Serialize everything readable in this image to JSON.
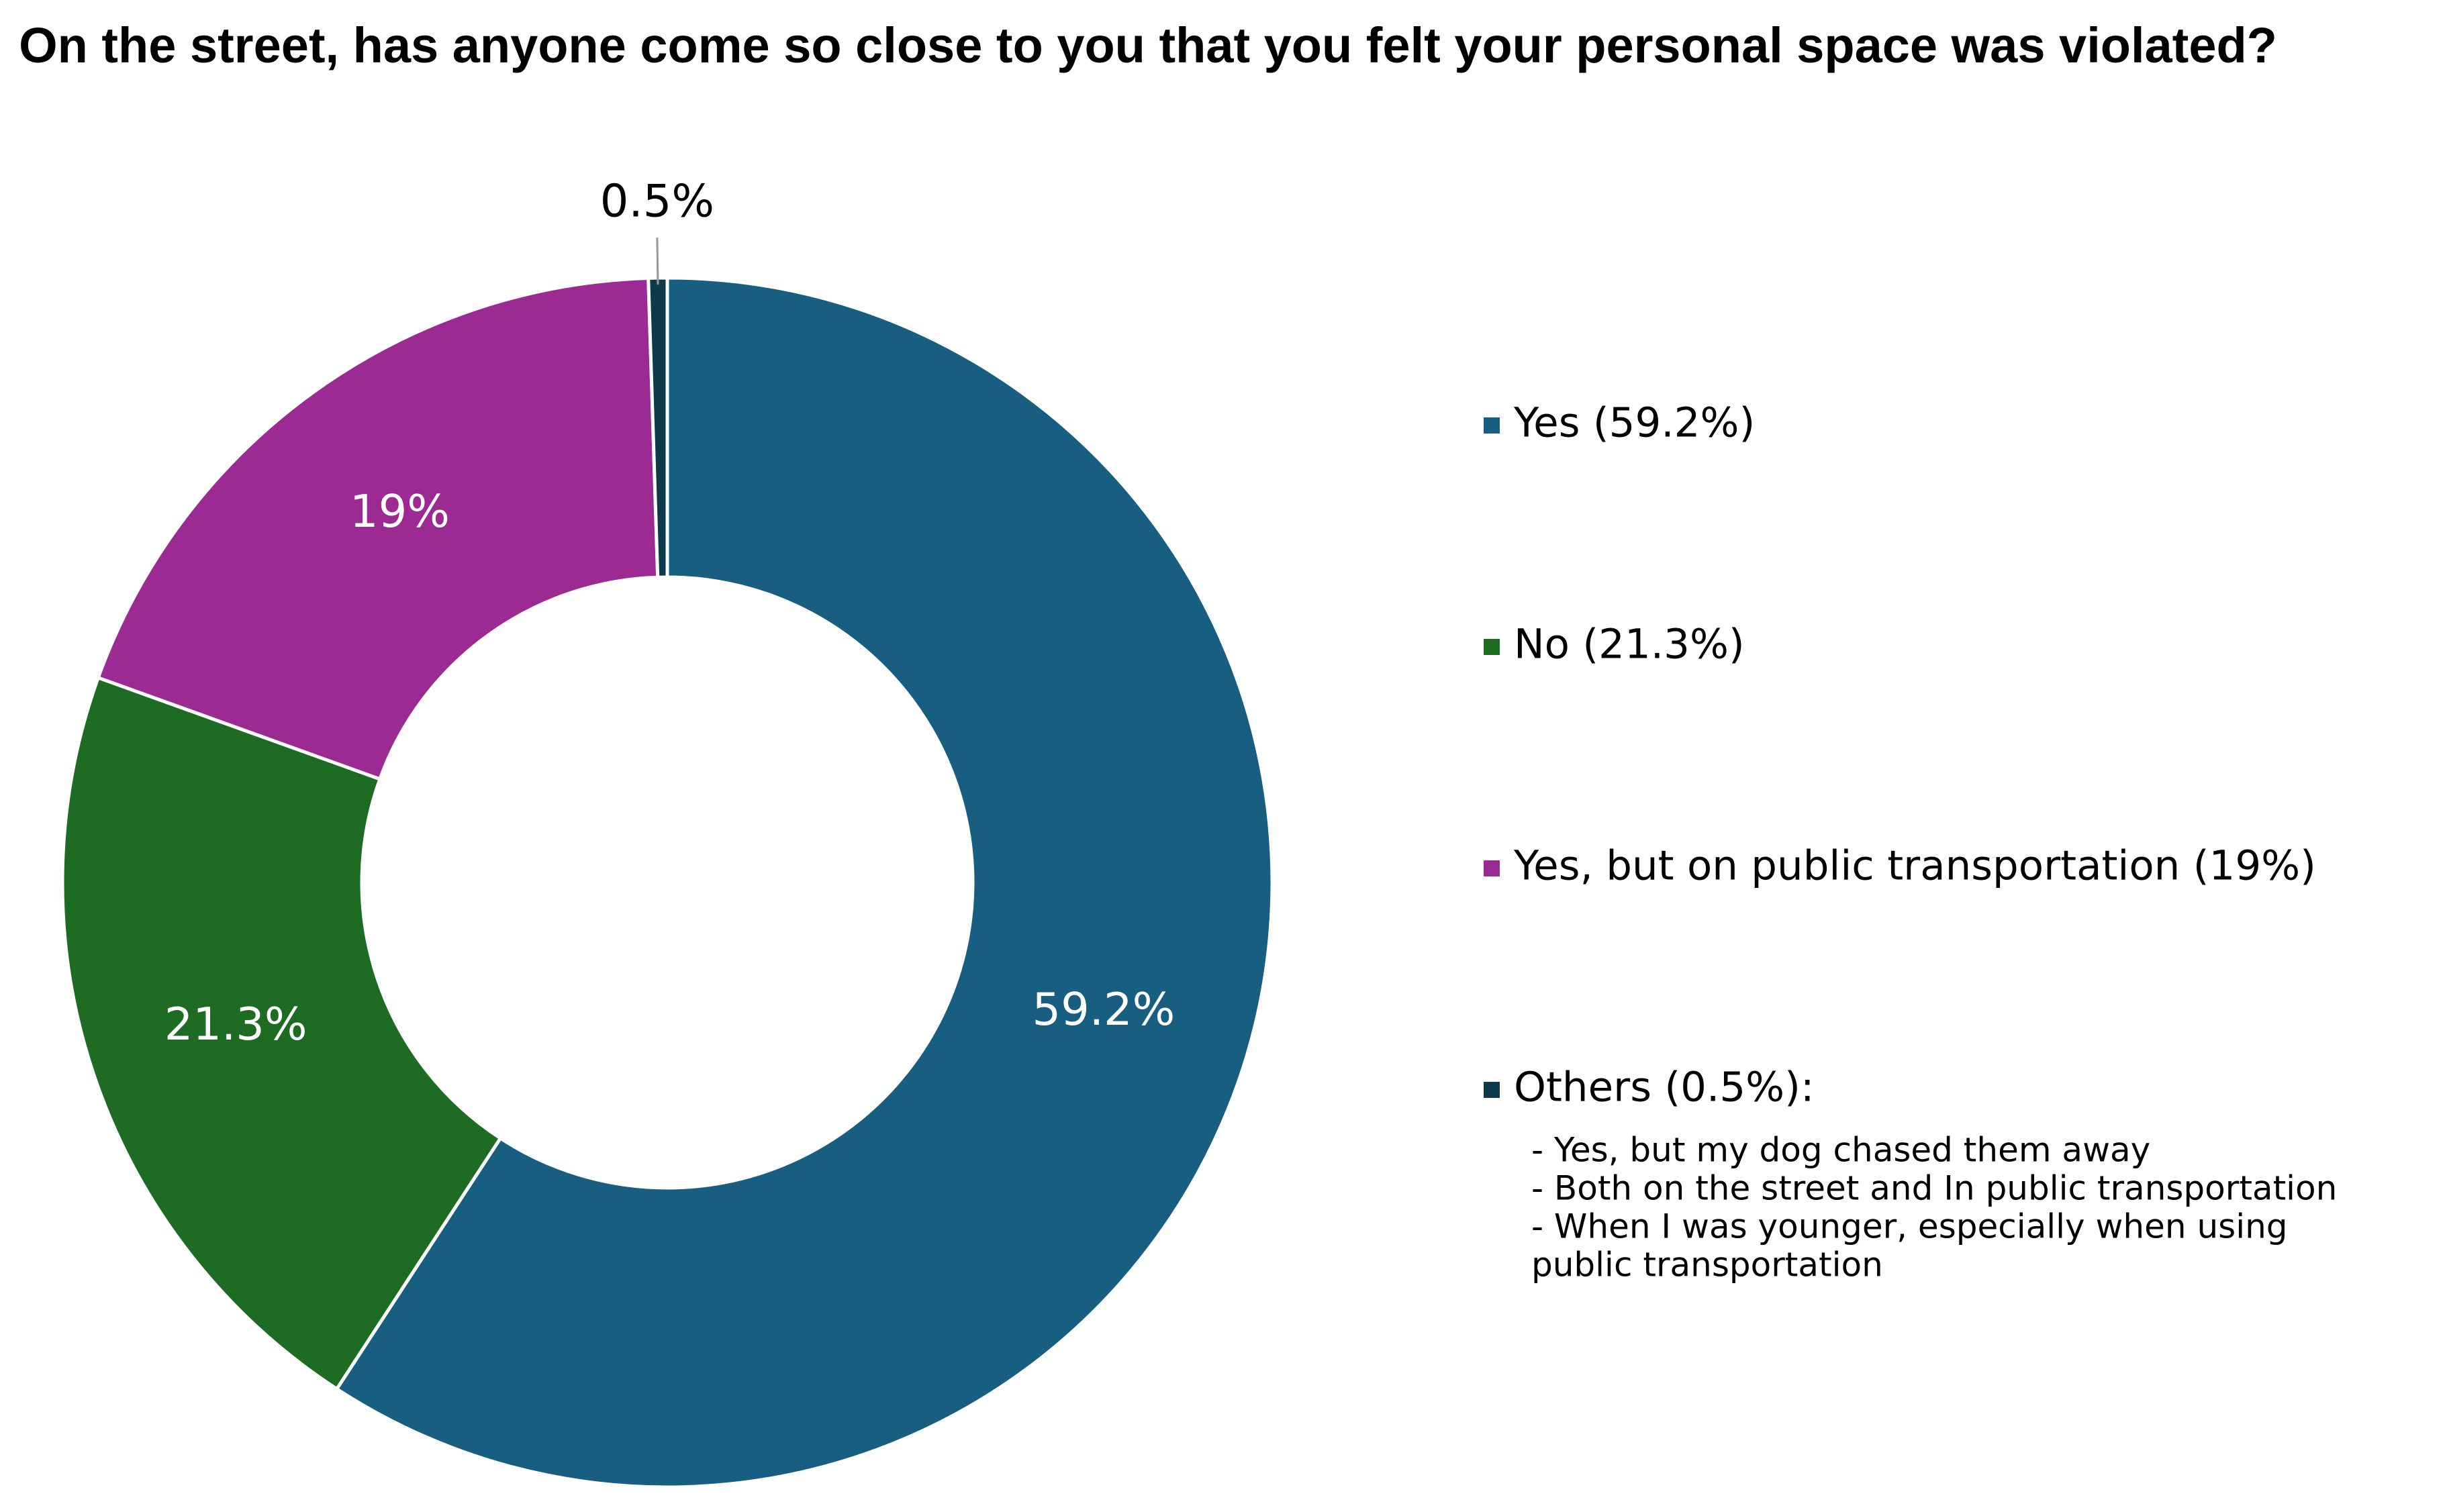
{
  "chart_data": {
    "type": "pie",
    "title": "On the street, has anyone come so close to you that you felt your personal space was violated?",
    "categories": [
      "Yes (59.2%)",
      "No (21.3%)",
      "Yes, but on public transportation (19%)",
      "Others (0.5%):"
    ],
    "values": [
      59.2,
      21.3,
      19,
      0.5
    ],
    "value_labels": [
      "59.2%",
      "21.3%",
      "19%",
      "0.5%"
    ],
    "colors": [
      "#175e80",
      "#1e6b24",
      "#9b2a92",
      "#0d3a4a"
    ],
    "donut": true,
    "legend": "right",
    "legend_notes": [
      "- Yes, but my dog chased them away",
      "- Both on the street and In public transportation",
      "- When I was younger, especially when using",
      "public transportation"
    ]
  }
}
